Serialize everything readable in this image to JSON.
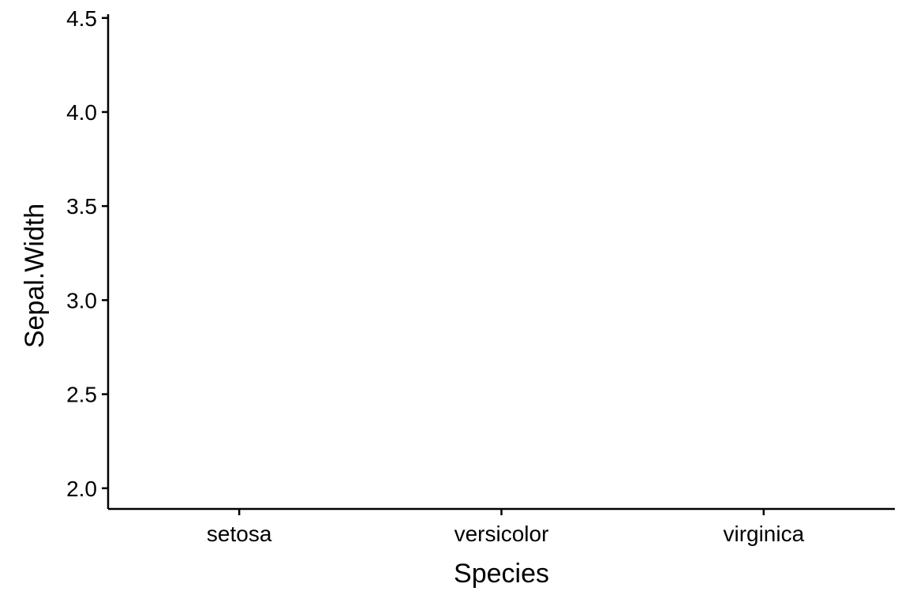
{
  "chart_data": {
    "type": "scatter",
    "categories": [
      "setosa",
      "versicolor",
      "virginica"
    ],
    "series": [],
    "xlabel": "Species",
    "ylabel": "Sepal.Width",
    "ylim": [
      1.89,
      4.52
    ],
    "yticks": [
      {
        "value": 2.0,
        "label": "2.0"
      },
      {
        "value": 2.5,
        "label": "2.5"
      },
      {
        "value": 3.0,
        "label": "3.0"
      },
      {
        "value": 3.5,
        "label": "3.5"
      },
      {
        "value": 4.0,
        "label": "4.0"
      },
      {
        "value": 4.5,
        "label": "4.5"
      }
    ],
    "grid": false,
    "legend": "none",
    "colors": {
      "axis": "#000000",
      "background": "#ffffff"
    }
  }
}
